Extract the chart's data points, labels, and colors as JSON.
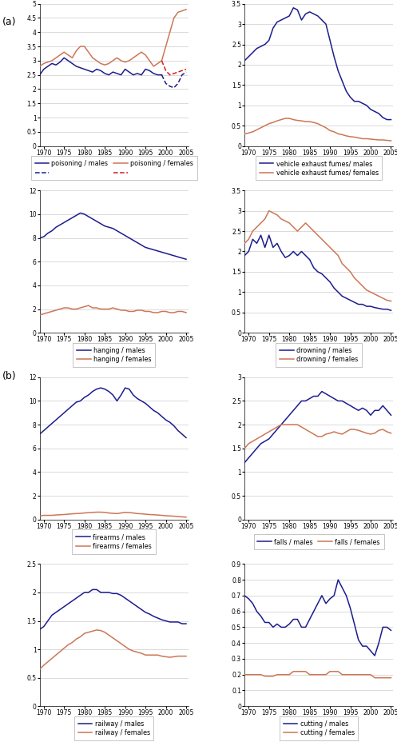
{
  "years": [
    1969,
    1970,
    1971,
    1972,
    1973,
    1974,
    1975,
    1976,
    1977,
    1978,
    1979,
    1980,
    1981,
    1982,
    1983,
    1984,
    1985,
    1986,
    1987,
    1988,
    1989,
    1990,
    1991,
    1992,
    1993,
    1994,
    1995,
    1996,
    1997,
    1998,
    1999,
    2000,
    2001,
    2002,
    2003,
    2004,
    2005
  ],
  "poisoning_males_solid": [
    2.5,
    2.7,
    2.8,
    2.9,
    2.85,
    2.95,
    3.1,
    3.0,
    2.9,
    2.8,
    2.75,
    2.7,
    2.65,
    2.6,
    2.7,
    2.65,
    2.55,
    2.5,
    2.6,
    2.55,
    2.5,
    2.7,
    2.6,
    2.5,
    2.55,
    2.5,
    2.7,
    2.65,
    2.55,
    2.5,
    2.5,
    null,
    null,
    null,
    null,
    null,
    null
  ],
  "poisoning_females_solid": [
    2.8,
    2.9,
    2.95,
    3.0,
    3.1,
    3.2,
    3.3,
    3.2,
    3.1,
    3.35,
    3.5,
    3.5,
    3.3,
    3.1,
    3.0,
    2.9,
    2.85,
    2.9,
    3.0,
    3.1,
    3.0,
    2.95,
    3.0,
    3.1,
    3.2,
    3.3,
    3.2,
    3.0,
    2.8,
    2.9,
    3.0,
    3.5,
    4.0,
    4.5,
    4.7,
    4.75,
    4.8
  ],
  "poisoning_males_dashed": [
    null,
    null,
    null,
    null,
    null,
    null,
    null,
    null,
    null,
    null,
    null,
    null,
    null,
    null,
    null,
    null,
    null,
    null,
    null,
    null,
    null,
    null,
    null,
    null,
    null,
    null,
    null,
    null,
    null,
    null,
    2.5,
    2.2,
    2.1,
    2.05,
    2.2,
    2.5,
    2.6
  ],
  "poisoning_females_dashed": [
    null,
    null,
    null,
    null,
    null,
    null,
    null,
    null,
    null,
    null,
    null,
    null,
    null,
    null,
    null,
    null,
    null,
    null,
    null,
    null,
    null,
    null,
    null,
    null,
    null,
    null,
    null,
    null,
    null,
    null,
    3.0,
    2.65,
    2.5,
    2.55,
    2.6,
    2.65,
    2.7
  ],
  "vehicle_males": [
    2.1,
    2.2,
    2.3,
    2.4,
    2.45,
    2.5,
    2.6,
    2.9,
    3.05,
    3.1,
    3.15,
    3.2,
    3.4,
    3.35,
    3.1,
    3.25,
    3.3,
    3.25,
    3.2,
    3.1,
    3.0,
    2.6,
    2.2,
    1.85,
    1.6,
    1.35,
    1.2,
    1.1,
    1.1,
    1.05,
    1.0,
    0.9,
    0.85,
    0.8,
    0.7,
    0.65,
    0.65
  ],
  "vehicle_females": [
    0.3,
    0.32,
    0.35,
    0.4,
    0.45,
    0.5,
    0.55,
    0.58,
    0.62,
    0.65,
    0.68,
    0.68,
    0.65,
    0.63,
    0.62,
    0.6,
    0.6,
    0.58,
    0.55,
    0.5,
    0.45,
    0.38,
    0.35,
    0.3,
    0.28,
    0.25,
    0.23,
    0.22,
    0.2,
    0.18,
    0.18,
    0.17,
    0.16,
    0.15,
    0.15,
    0.14,
    0.13
  ],
  "hanging_males": [
    8.0,
    8.1,
    8.4,
    8.6,
    8.9,
    9.1,
    9.3,
    9.5,
    9.7,
    9.9,
    10.1,
    10.0,
    9.8,
    9.6,
    9.4,
    9.2,
    9.0,
    8.9,
    8.8,
    8.6,
    8.4,
    8.2,
    8.0,
    7.8,
    7.6,
    7.4,
    7.2,
    7.1,
    7.0,
    6.9,
    6.8,
    6.7,
    6.6,
    6.5,
    6.4,
    6.3,
    6.2
  ],
  "hanging_females": [
    1.5,
    1.6,
    1.7,
    1.8,
    1.9,
    2.0,
    2.1,
    2.1,
    2.0,
    2.0,
    2.1,
    2.2,
    2.3,
    2.1,
    2.1,
    2.0,
    2.0,
    2.0,
    2.1,
    2.0,
    1.9,
    1.9,
    1.8,
    1.8,
    1.9,
    1.9,
    1.8,
    1.8,
    1.7,
    1.7,
    1.8,
    1.8,
    1.7,
    1.7,
    1.8,
    1.8,
    1.7
  ],
  "drowning_males": [
    1.9,
    2.0,
    2.3,
    2.2,
    2.4,
    2.1,
    2.4,
    2.1,
    2.2,
    2.0,
    1.85,
    1.9,
    2.0,
    1.9,
    2.0,
    1.9,
    1.8,
    1.6,
    1.5,
    1.45,
    1.35,
    1.25,
    1.1,
    1.0,
    0.9,
    0.85,
    0.8,
    0.75,
    0.7,
    0.7,
    0.65,
    0.65,
    0.62,
    0.6,
    0.58,
    0.58,
    0.55
  ],
  "drowning_females": [
    2.2,
    2.3,
    2.5,
    2.6,
    2.7,
    2.8,
    3.0,
    2.95,
    2.9,
    2.8,
    2.75,
    2.7,
    2.6,
    2.5,
    2.6,
    2.7,
    2.6,
    2.5,
    2.4,
    2.3,
    2.2,
    2.1,
    2.0,
    1.9,
    1.7,
    1.6,
    1.5,
    1.35,
    1.25,
    1.15,
    1.05,
    1.0,
    0.95,
    0.9,
    0.85,
    0.8,
    0.78
  ],
  "firearms_males": [
    7.2,
    7.5,
    7.8,
    8.1,
    8.4,
    8.7,
    9.0,
    9.3,
    9.6,
    9.9,
    10.0,
    10.3,
    10.5,
    10.8,
    11.0,
    11.1,
    11.0,
    10.8,
    10.5,
    10.0,
    10.5,
    11.1,
    11.0,
    10.5,
    10.2,
    10.0,
    9.8,
    9.5,
    9.2,
    9.0,
    8.7,
    8.4,
    8.2,
    7.9,
    7.5,
    7.2,
    6.9
  ],
  "firearms_females": [
    0.3,
    0.35,
    0.35,
    0.35,
    0.38,
    0.4,
    0.42,
    0.45,
    0.48,
    0.5,
    0.52,
    0.55,
    0.58,
    0.6,
    0.62,
    0.62,
    0.6,
    0.55,
    0.52,
    0.5,
    0.55,
    0.6,
    0.58,
    0.55,
    0.5,
    0.48,
    0.45,
    0.42,
    0.4,
    0.38,
    0.35,
    0.32,
    0.3,
    0.28,
    0.25,
    0.22,
    0.2
  ],
  "falls_males": [
    1.2,
    1.3,
    1.4,
    1.5,
    1.6,
    1.65,
    1.7,
    1.8,
    1.9,
    2.0,
    2.1,
    2.2,
    2.3,
    2.4,
    2.5,
    2.5,
    2.55,
    2.6,
    2.6,
    2.7,
    2.65,
    2.6,
    2.55,
    2.5,
    2.5,
    2.45,
    2.4,
    2.35,
    2.3,
    2.35,
    2.3,
    2.2,
    2.3,
    2.3,
    2.4,
    2.3,
    2.2
  ],
  "falls_females": [
    1.5,
    1.6,
    1.65,
    1.7,
    1.75,
    1.8,
    1.85,
    1.9,
    1.95,
    2.0,
    2.0,
    2.0,
    2.0,
    2.0,
    1.95,
    1.9,
    1.85,
    1.8,
    1.75,
    1.75,
    1.8,
    1.82,
    1.85,
    1.82,
    1.8,
    1.85,
    1.9,
    1.9,
    1.88,
    1.85,
    1.82,
    1.8,
    1.82,
    1.88,
    1.9,
    1.85,
    1.82
  ],
  "railway_males": [
    1.35,
    1.4,
    1.5,
    1.6,
    1.65,
    1.7,
    1.75,
    1.8,
    1.85,
    1.9,
    1.95,
    2.0,
    2.0,
    2.05,
    2.05,
    2.0,
    2.0,
    2.0,
    1.98,
    1.98,
    1.95,
    1.9,
    1.85,
    1.8,
    1.75,
    1.7,
    1.65,
    1.62,
    1.58,
    1.55,
    1.52,
    1.5,
    1.48,
    1.48,
    1.48,
    1.45,
    1.45
  ],
  "railway_females": [
    0.65,
    0.72,
    0.78,
    0.84,
    0.9,
    0.96,
    1.02,
    1.08,
    1.12,
    1.18,
    1.22,
    1.28,
    1.3,
    1.32,
    1.34,
    1.33,
    1.3,
    1.25,
    1.2,
    1.15,
    1.1,
    1.05,
    1.0,
    0.97,
    0.95,
    0.93,
    0.9,
    0.9,
    0.9,
    0.9,
    0.88,
    0.87,
    0.86,
    0.87,
    0.88,
    0.88,
    0.88
  ],
  "cutting_males": [
    0.7,
    0.68,
    0.65,
    0.6,
    0.57,
    0.53,
    0.53,
    0.5,
    0.52,
    0.5,
    0.5,
    0.52,
    0.55,
    0.55,
    0.5,
    0.5,
    0.55,
    0.6,
    0.65,
    0.7,
    0.65,
    0.68,
    0.7,
    0.8,
    0.75,
    0.7,
    0.62,
    0.52,
    0.42,
    0.38,
    0.38,
    0.35,
    0.32,
    0.4,
    0.5,
    0.5,
    0.48
  ],
  "cutting_females": [
    0.2,
    0.2,
    0.2,
    0.2,
    0.2,
    0.19,
    0.19,
    0.19,
    0.2,
    0.2,
    0.2,
    0.2,
    0.22,
    0.22,
    0.22,
    0.22,
    0.2,
    0.2,
    0.2,
    0.2,
    0.2,
    0.22,
    0.22,
    0.22,
    0.2,
    0.2,
    0.2,
    0.2,
    0.2,
    0.2,
    0.2,
    0.2,
    0.18,
    0.18,
    0.18,
    0.18,
    0.18
  ],
  "color_male": "#1c1c8f",
  "color_female": "#cc7755",
  "color_male_dashed": "#1c1c8f",
  "color_female_dashed": "#cc2222"
}
